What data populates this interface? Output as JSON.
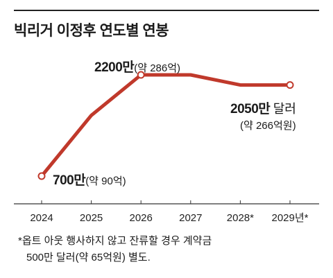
{
  "title": "빅리거 이정후 연도별 연봉",
  "chart_data": {
    "type": "line",
    "categories": [
      "2024",
      "2025",
      "2026",
      "2027",
      "2028*",
      "2029년*"
    ],
    "values": [
      700,
      1600,
      2200,
      2200,
      2050,
      2050
    ],
    "unit": "만 달러",
    "ylim": [
      600,
      2300
    ],
    "line_color": "#c0392b",
    "marker_fill": "#ffffff",
    "annotations": {
      "start": {
        "value": "700만",
        "note": "(약 90억)"
      },
      "peak": {
        "value": "2200만",
        "note": "(약 286억)"
      },
      "end": {
        "value": "2050만",
        "unit": "달러",
        "note": "(약 266억원)"
      }
    }
  },
  "footnote": {
    "line1": "*옵트 아웃 행사하지 않고 잔류할 경우 계약금",
    "line2": "500만 달러(약 65억원) 별도."
  }
}
